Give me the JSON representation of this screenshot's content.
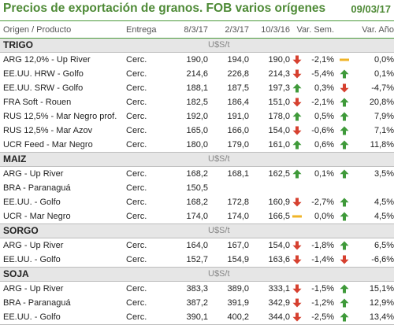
{
  "title": "Precios de exportación de granos. FOB varios orígenes",
  "date": "09/03/17",
  "columns": {
    "product": "Origen / Producto",
    "delivery": "Entrega",
    "d1": "8/3/17",
    "d2": "2/3/17",
    "d3": "10/3/16",
    "var_week": "Var. Sem.",
    "var_year": "Var. Año"
  },
  "unit": "U$S/t",
  "colors": {
    "up": "#3f9a3a",
    "down": "#d6402f",
    "neutral": "#f0b428",
    "accent": "#4e8a36"
  },
  "sections": [
    {
      "name": "TRIGO",
      "rows": [
        {
          "product": "ARG 12,0% - Up River",
          "delivery": "Cerc.",
          "d1": "190,0",
          "d2": "194,0",
          "d3": "190,0",
          "year_icon": "down",
          "var_week": "-2,1%",
          "week_icon": "neutral",
          "var_year": "0,0%"
        },
        {
          "product": "EE.UU. HRW - Golfo",
          "delivery": "Cerc.",
          "d1": "214,6",
          "d2": "226,8",
          "d3": "214,3",
          "year_icon": "down",
          "var_week": "-5,4%",
          "week_icon": "up",
          "var_year": "0,1%"
        },
        {
          "product": "EE.UU. SRW - Golfo",
          "delivery": "Cerc.",
          "d1": "188,1",
          "d2": "187,5",
          "d3": "197,3",
          "year_icon": "up",
          "var_week": "0,3%",
          "week_icon": "down",
          "var_year": "-4,7%"
        },
        {
          "product": "FRA Soft - Rouen",
          "delivery": "Cerc.",
          "d1": "182,5",
          "d2": "186,4",
          "d3": "151,0",
          "year_icon": "down",
          "var_week": "-2,1%",
          "week_icon": "up",
          "var_year": "20,8%"
        },
        {
          "product": "RUS 12,5% - Mar Negro prof.",
          "delivery": "Cerc.",
          "d1": "192,0",
          "d2": "191,0",
          "d3": "178,0",
          "year_icon": "up",
          "var_week": "0,5%",
          "week_icon": "up",
          "var_year": "7,9%"
        },
        {
          "product": "RUS 12,5% - Mar Azov",
          "delivery": "Cerc.",
          "d1": "165,0",
          "d2": "166,0",
          "d3": "154,0",
          "year_icon": "down",
          "var_week": "-0,6%",
          "week_icon": "up",
          "var_year": "7,1%"
        },
        {
          "product": "UCR Feed - Mar Negro",
          "delivery": "Cerc.",
          "d1": "180,0",
          "d2": "179,0",
          "d3": "161,0",
          "year_icon": "up",
          "var_week": "0,6%",
          "week_icon": "up",
          "var_year": "11,8%"
        }
      ]
    },
    {
      "name": "MAIZ",
      "rows": [
        {
          "product": "ARG - Up River",
          "delivery": "Cerc.",
          "d1": "168,2",
          "d2": "168,1",
          "d3": "162,5",
          "year_icon": "up",
          "var_week": "0,1%",
          "week_icon": "up",
          "var_year": "3,5%"
        },
        {
          "product": "BRA - Paranaguá",
          "delivery": "Cerc.",
          "d1": "150,5",
          "d2": "",
          "d3": "",
          "year_icon": "",
          "var_week": "",
          "week_icon": "",
          "var_year": ""
        },
        {
          "product": "EE.UU. - Golfo",
          "delivery": "Cerc.",
          "d1": "168,2",
          "d2": "172,8",
          "d3": "160,9",
          "year_icon": "down",
          "var_week": "-2,7%",
          "week_icon": "up",
          "var_year": "4,5%"
        },
        {
          "product": "UCR - Mar Negro",
          "delivery": "Cerc.",
          "d1": "174,0",
          "d2": "174,0",
          "d3": "166,5",
          "year_icon": "neutral",
          "var_week": "0,0%",
          "week_icon": "up",
          "var_year": "4,5%"
        }
      ]
    },
    {
      "name": "SORGO",
      "rows": [
        {
          "product": "ARG - Up River",
          "delivery": "Cerc.",
          "d1": "164,0",
          "d2": "167,0",
          "d3": "154,0",
          "year_icon": "down",
          "var_week": "-1,8%",
          "week_icon": "up",
          "var_year": "6,5%"
        },
        {
          "product": "EE.UU. - Golfo",
          "delivery": "Cerc.",
          "d1": "152,7",
          "d2": "154,9",
          "d3": "163,6",
          "year_icon": "down",
          "var_week": "-1,4%",
          "week_icon": "down",
          "var_year": "-6,6%"
        }
      ]
    },
    {
      "name": "SOJA",
      "rows": [
        {
          "product": "ARG - Up River",
          "delivery": "Cerc.",
          "d1": "383,3",
          "d2": "389,0",
          "d3": "333,1",
          "year_icon": "down",
          "var_week": "-1,5%",
          "week_icon": "up",
          "var_year": "15,1%"
        },
        {
          "product": "BRA - Paranaguá",
          "delivery": "Cerc.",
          "d1": "387,2",
          "d2": "391,9",
          "d3": "342,9",
          "year_icon": "down",
          "var_week": "-1,2%",
          "week_icon": "up",
          "var_year": "12,9%"
        },
        {
          "product": "EE.UU. - Golfo",
          "delivery": "Cerc.",
          "d1": "390,1",
          "d2": "400,2",
          "d3": "344,0",
          "year_icon": "down",
          "var_week": "-2,5%",
          "week_icon": "up",
          "var_year": "13,4%"
        }
      ]
    }
  ]
}
